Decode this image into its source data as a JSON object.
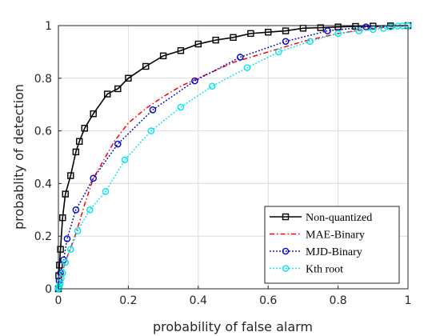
{
  "chart_data": {
    "type": "line",
    "title": "",
    "xlabel": "probability of false alarm",
    "ylabel": "probablity of detection",
    "xlim": [
      0,
      1
    ],
    "ylim": [
      0,
      1
    ],
    "xticks": [
      "0",
      "0.2",
      "0.4",
      "0.6",
      "0.8",
      "1"
    ],
    "yticks": [
      "0",
      "0.2",
      "0.4",
      "0.6",
      "0.8",
      "1"
    ],
    "grid": true,
    "legend_position": "bottom-right",
    "series": [
      {
        "name": "Non-quantized",
        "color": "#000000",
        "line_style": "solid",
        "marker": "square",
        "points": [
          [
            0,
            0
          ],
          [
            0.001,
            0.05
          ],
          [
            0.003,
            0.09
          ],
          [
            0.006,
            0.15
          ],
          [
            0.012,
            0.27
          ],
          [
            0.02,
            0.36
          ],
          [
            0.035,
            0.43
          ],
          [
            0.05,
            0.52
          ],
          [
            0.06,
            0.56
          ],
          [
            0.075,
            0.61
          ],
          [
            0.1,
            0.665
          ],
          [
            0.14,
            0.74
          ],
          [
            0.17,
            0.76
          ],
          [
            0.2,
            0.8
          ],
          [
            0.25,
            0.845
          ],
          [
            0.3,
            0.885
          ],
          [
            0.35,
            0.905
          ],
          [
            0.4,
            0.93
          ],
          [
            0.45,
            0.945
          ],
          [
            0.5,
            0.955
          ],
          [
            0.55,
            0.97
          ],
          [
            0.6,
            0.975
          ],
          [
            0.65,
            0.98
          ],
          [
            0.7,
            0.99
          ],
          [
            0.75,
            0.992
          ],
          [
            0.8,
            0.995
          ],
          [
            0.85,
            0.997
          ],
          [
            0.9,
            0.998
          ],
          [
            0.95,
            0.999
          ],
          [
            1,
            1
          ]
        ]
      },
      {
        "name": "MAE-Binary",
        "color": "#ff0000",
        "line_style": "dashdot",
        "marker": "none",
        "points": [
          [
            0,
            0
          ],
          [
            0.003,
            0.02
          ],
          [
            0.01,
            0.06
          ],
          [
            0.025,
            0.12
          ],
          [
            0.05,
            0.21
          ],
          [
            0.075,
            0.32
          ],
          [
            0.1,
            0.42
          ],
          [
            0.13,
            0.49
          ],
          [
            0.16,
            0.56
          ],
          [
            0.2,
            0.63
          ],
          [
            0.25,
            0.685
          ],
          [
            0.3,
            0.73
          ],
          [
            0.35,
            0.77
          ],
          [
            0.4,
            0.8
          ],
          [
            0.45,
            0.83
          ],
          [
            0.5,
            0.86
          ],
          [
            0.55,
            0.88
          ],
          [
            0.6,
            0.9
          ],
          [
            0.7,
            0.94
          ],
          [
            0.8,
            0.97
          ],
          [
            0.9,
            0.99
          ],
          [
            1,
            1
          ]
        ]
      },
      {
        "name": "MJD-Binary",
        "color": "#0000cc",
        "line_style": "dotted",
        "marker": "circle",
        "points": [
          [
            0,
            0
          ],
          [
            0.002,
            0.03
          ],
          [
            0.006,
            0.06
          ],
          [
            0.015,
            0.11
          ],
          [
            0.025,
            0.19
          ],
          [
            0.05,
            0.3
          ],
          [
            0.1,
            0.42
          ],
          [
            0.17,
            0.55
          ],
          [
            0.27,
            0.68
          ],
          [
            0.39,
            0.79
          ],
          [
            0.52,
            0.88
          ],
          [
            0.65,
            0.94
          ],
          [
            0.77,
            0.98
          ],
          [
            0.88,
            0.995
          ],
          [
            1,
            1
          ]
        ]
      },
      {
        "name": "Kth root",
        "color": "#00e5ee",
        "line_style": "dotted",
        "marker": "circle",
        "points": [
          [
            0,
            0
          ],
          [
            0.001,
            0.005
          ],
          [
            0.003,
            0.01
          ],
          [
            0.005,
            0.02
          ],
          [
            0.008,
            0.04
          ],
          [
            0.012,
            0.06
          ],
          [
            0.02,
            0.1
          ],
          [
            0.035,
            0.15
          ],
          [
            0.055,
            0.22
          ],
          [
            0.09,
            0.3
          ],
          [
            0.135,
            0.37
          ],
          [
            0.19,
            0.49
          ],
          [
            0.265,
            0.6
          ],
          [
            0.35,
            0.69
          ],
          [
            0.44,
            0.77
          ],
          [
            0.54,
            0.84
          ],
          [
            0.63,
            0.9
          ],
          [
            0.72,
            0.94
          ],
          [
            0.8,
            0.97
          ],
          [
            0.86,
            0.98
          ],
          [
            0.9,
            0.985
          ],
          [
            0.93,
            0.99
          ],
          [
            0.95,
            0.995
          ],
          [
            0.97,
            0.998
          ],
          [
            0.985,
            0.999
          ],
          [
            1,
            1
          ]
        ]
      }
    ]
  }
}
